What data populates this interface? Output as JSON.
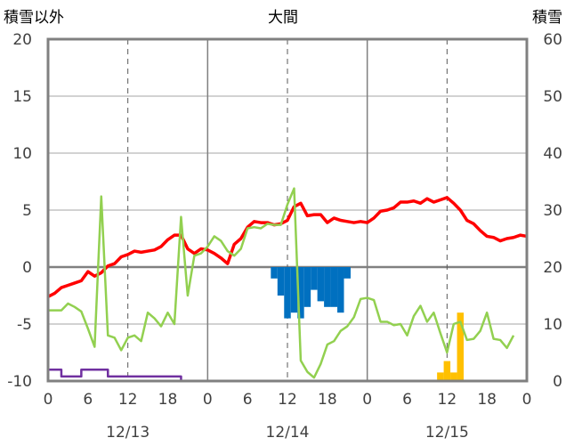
{
  "chart_data": {
    "type": "line",
    "title": "大間",
    "y_left_label": "積雪以外",
    "y_right_label": "積雪",
    "y_left_ticks": [
      "20",
      "15",
      "10",
      "5",
      "0",
      "-5",
      "-10"
    ],
    "y_right_ticks": [
      "60",
      "50",
      "40",
      "30",
      "20",
      "10",
      "0"
    ],
    "y_left_range": [
      -10,
      20
    ],
    "y_right_range": [
      0,
      60
    ],
    "x_range_hours": [
      0,
      72
    ],
    "x_tick_labels": [
      {
        "hour": 0,
        "label": "0"
      },
      {
        "hour": 6,
        "label": "6"
      },
      {
        "hour": 12,
        "label": "12"
      },
      {
        "hour": 18,
        "label": "18"
      },
      {
        "hour": 24,
        "label": "0"
      },
      {
        "hour": 30,
        "label": "6"
      },
      {
        "hour": 36,
        "label": "12"
      },
      {
        "hour": 42,
        "label": "18"
      },
      {
        "hour": 48,
        "label": "0"
      },
      {
        "hour": 54,
        "label": "6"
      },
      {
        "hour": 60,
        "label": "12"
      },
      {
        "hour": 66,
        "label": "18"
      },
      {
        "hour": 72,
        "label": "0"
      }
    ],
    "date_labels": [
      {
        "hour": 12,
        "label": "12/13"
      },
      {
        "hour": 36,
        "label": "12/14"
      },
      {
        "hour": 60,
        "label": "12/15"
      }
    ],
    "grid": {
      "solid_hours": [
        24,
        48
      ],
      "dashed_hours": [
        12,
        36,
        60
      ],
      "zero_line_left": 0
    },
    "series": [
      {
        "color": "#ff0000",
        "axis": "left",
        "style": "line",
        "points": [
          [
            0,
            -2.6
          ],
          [
            1,
            -2.3
          ],
          [
            2,
            -1.8
          ],
          [
            3,
            -1.6
          ],
          [
            4,
            -1.4
          ],
          [
            5,
            -1.2
          ],
          [
            6,
            -0.4
          ],
          [
            7,
            -0.8
          ],
          [
            8,
            -0.5
          ],
          [
            9,
            0.1
          ],
          [
            10,
            0.3
          ],
          [
            11,
            0.9
          ],
          [
            12,
            1.1
          ],
          [
            13,
            1.4
          ],
          [
            14,
            1.3
          ],
          [
            15,
            1.4
          ],
          [
            16,
            1.5
          ],
          [
            17,
            1.8
          ],
          [
            18,
            2.4
          ],
          [
            19,
            2.8
          ],
          [
            20,
            2.8
          ],
          [
            21,
            1.6
          ],
          [
            22,
            1.2
          ],
          [
            23,
            1.6
          ],
          [
            24,
            1.5
          ],
          [
            25,
            1.2
          ],
          [
            26,
            0.8
          ],
          [
            27,
            0.3
          ],
          [
            28,
            2.0
          ],
          [
            29,
            2.5
          ],
          [
            30,
            3.5
          ],
          [
            31,
            4.0
          ],
          [
            32,
            3.9
          ],
          [
            33,
            3.9
          ],
          [
            34,
            3.7
          ],
          [
            35,
            3.8
          ],
          [
            36,
            4.1
          ],
          [
            37,
            5.3
          ],
          [
            38,
            5.6
          ],
          [
            39,
            4.5
          ],
          [
            40,
            4.6
          ],
          [
            41,
            4.6
          ],
          [
            42,
            3.9
          ],
          [
            43,
            4.3
          ],
          [
            44,
            4.1
          ],
          [
            45,
            4.0
          ],
          [
            46,
            3.9
          ],
          [
            47,
            4.0
          ],
          [
            48,
            3.9
          ],
          [
            49,
            4.3
          ],
          [
            50,
            4.9
          ],
          [
            51,
            5.0
          ],
          [
            52,
            5.2
          ],
          [
            53,
            5.7
          ],
          [
            54,
            5.7
          ],
          [
            55,
            5.8
          ],
          [
            56,
            5.6
          ],
          [
            57,
            6.0
          ],
          [
            58,
            5.7
          ],
          [
            59,
            5.9
          ],
          [
            60,
            6.1
          ],
          [
            61,
            5.6
          ],
          [
            62,
            5.0
          ],
          [
            63,
            4.1
          ],
          [
            64,
            3.8
          ],
          [
            65,
            3.2
          ],
          [
            66,
            2.7
          ],
          [
            67,
            2.6
          ],
          [
            68,
            2.3
          ],
          [
            69,
            2.5
          ],
          [
            70,
            2.6
          ],
          [
            71,
            2.8
          ],
          [
            72,
            2.7
          ]
        ]
      },
      {
        "color": "#92d050",
        "axis": "left",
        "style": "line",
        "points": [
          [
            0,
            -3.8
          ],
          [
            1,
            -3.8
          ],
          [
            2,
            -3.8
          ],
          [
            3,
            -3.2
          ],
          [
            4,
            -3.5
          ],
          [
            5,
            -3.9
          ],
          [
            6,
            -5.4
          ],
          [
            7,
            -7.0
          ],
          [
            8,
            6.2
          ],
          [
            9,
            -6.0
          ],
          [
            10,
            -6.2
          ],
          [
            11,
            -7.3
          ],
          [
            12,
            -6.2
          ],
          [
            13,
            -6.0
          ],
          [
            14,
            -6.5
          ],
          [
            15,
            -4.0
          ],
          [
            16,
            -4.5
          ],
          [
            17,
            -5.2
          ],
          [
            18,
            -4.0
          ],
          [
            19,
            -5.0
          ],
          [
            20,
            4.4
          ],
          [
            21,
            -2.5
          ],
          [
            22,
            1.0
          ],
          [
            23,
            1.2
          ],
          [
            24,
            1.8
          ],
          [
            25,
            2.7
          ],
          [
            26,
            2.3
          ],
          [
            27,
            1.4
          ],
          [
            28,
            1.0
          ],
          [
            29,
            1.6
          ],
          [
            30,
            3.4
          ],
          [
            31,
            3.5
          ],
          [
            32,
            3.4
          ],
          [
            33,
            3.8
          ],
          [
            34,
            3.7
          ],
          [
            35,
            3.7
          ],
          [
            36,
            5.5
          ],
          [
            37,
            6.9
          ],
          [
            38,
            -8.2
          ],
          [
            39,
            -9.2
          ],
          [
            40,
            -9.7
          ],
          [
            41,
            -8.5
          ],
          [
            42,
            -6.8
          ],
          [
            43,
            -6.5
          ],
          [
            44,
            -5.6
          ],
          [
            45,
            -5.2
          ],
          [
            46,
            -4.4
          ],
          [
            47,
            -2.8
          ],
          [
            48,
            -2.7
          ],
          [
            49,
            -2.9
          ],
          [
            50,
            -4.8
          ],
          [
            51,
            -4.8
          ],
          [
            52,
            -5.1
          ],
          [
            53,
            -5.0
          ],
          [
            54,
            -6.0
          ],
          [
            55,
            -4.3
          ],
          [
            56,
            -3.4
          ],
          [
            57,
            -4.8
          ],
          [
            58,
            -4.0
          ],
          [
            59,
            -5.8
          ],
          [
            60,
            -7.5
          ],
          [
            61,
            -5.0
          ],
          [
            62,
            -4.8
          ],
          [
            63,
            -6.4
          ],
          [
            64,
            -6.3
          ],
          [
            65,
            -5.6
          ],
          [
            66,
            -4.0
          ],
          [
            67,
            -6.3
          ],
          [
            68,
            -6.4
          ],
          [
            69,
            -7.1
          ],
          [
            70,
            -6.0
          ]
        ]
      },
      {
        "color": "#7030a0",
        "axis": "left",
        "style": "step",
        "points": [
          [
            0,
            -9.0
          ],
          [
            1,
            -9.0
          ],
          [
            2,
            -9.6
          ],
          [
            3,
            -9.6
          ],
          [
            4,
            -9.6
          ],
          [
            5,
            -9.0
          ],
          [
            6,
            -9.0
          ],
          [
            7,
            -9.0
          ],
          [
            8,
            -9.0
          ],
          [
            9,
            -9.6
          ],
          [
            10,
            -9.6
          ],
          [
            11,
            -9.6
          ],
          [
            12,
            -9.6
          ],
          [
            13,
            -9.6
          ],
          [
            14,
            -9.6
          ],
          [
            15,
            -9.6
          ],
          [
            16,
            -9.6
          ],
          [
            17,
            -9.6
          ],
          [
            18,
            -9.6
          ],
          [
            19,
            -9.6
          ],
          [
            20,
            -10.0
          ],
          [
            72,
            -10.0
          ]
        ]
      },
      {
        "color": "#0070c0",
        "axis": "left",
        "style": "bars-down",
        "bars": [
          {
            "hour": 34,
            "value": -1.0
          },
          {
            "hour": 35,
            "value": -2.5
          },
          {
            "hour": 36,
            "value": -4.5
          },
          {
            "hour": 37,
            "value": -4.0
          },
          {
            "hour": 38,
            "value": -4.5
          },
          {
            "hour": 39,
            "value": -3.5
          },
          {
            "hour": 40,
            "value": -2.0
          },
          {
            "hour": 41,
            "value": -3.0
          },
          {
            "hour": 42,
            "value": -3.5
          },
          {
            "hour": 43,
            "value": -3.5
          },
          {
            "hour": 44,
            "value": -4.0
          },
          {
            "hour": 45,
            "value": -1.0
          }
        ]
      },
      {
        "color": "#ffc000",
        "axis": "right",
        "style": "bars-up",
        "bars": [
          {
            "hour": 59,
            "value": 1.5
          },
          {
            "hour": 60,
            "value": 3.5
          },
          {
            "hour": 61,
            "value": 1.5
          },
          {
            "hour": 62,
            "value": 12.0
          }
        ]
      }
    ]
  }
}
